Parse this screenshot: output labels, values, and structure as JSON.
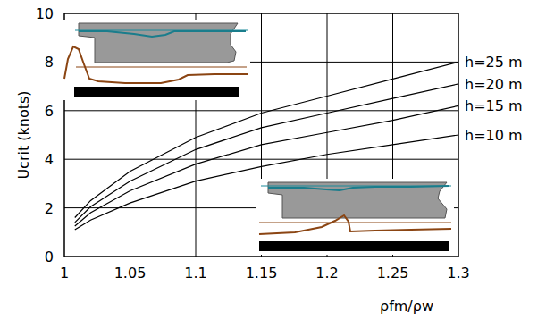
{
  "chart_data": {
    "type": "line",
    "x_label": "ρfm/ρw",
    "y_label": "Ucrit (knots)",
    "x": [
      1.008,
      1.02,
      1.05,
      1.1,
      1.15,
      1.2,
      1.25,
      1.3
    ],
    "series": [
      {
        "name": "h=25 m",
        "color": "#000000",
        "values": [
          1.6,
          2.3,
          3.5,
          4.9,
          5.9,
          6.6,
          7.3,
          8.0
        ]
      },
      {
        "name": "h=20 m",
        "color": "#000000",
        "values": [
          1.4,
          2.05,
          3.1,
          4.4,
          5.3,
          5.9,
          6.5,
          7.1
        ]
      },
      {
        "name": "h=15 m",
        "color": "#000000",
        "values": [
          1.25,
          1.8,
          2.7,
          3.8,
          4.6,
          5.1,
          5.6,
          6.2
        ]
      },
      {
        "name": "h=10 m",
        "color": "#000000",
        "values": [
          1.1,
          1.5,
          2.2,
          3.1,
          3.7,
          4.2,
          4.6,
          5.0
        ]
      }
    ],
    "xlim": [
      1,
      1.3
    ],
    "ylim": [
      0,
      10
    ],
    "xticks": [
      1,
      1.05,
      1.1,
      1.15,
      1.2,
      1.25,
      1.3
    ],
    "yticks": [
      0,
      2,
      4,
      6,
      8,
      10
    ],
    "grid": true
  }
}
